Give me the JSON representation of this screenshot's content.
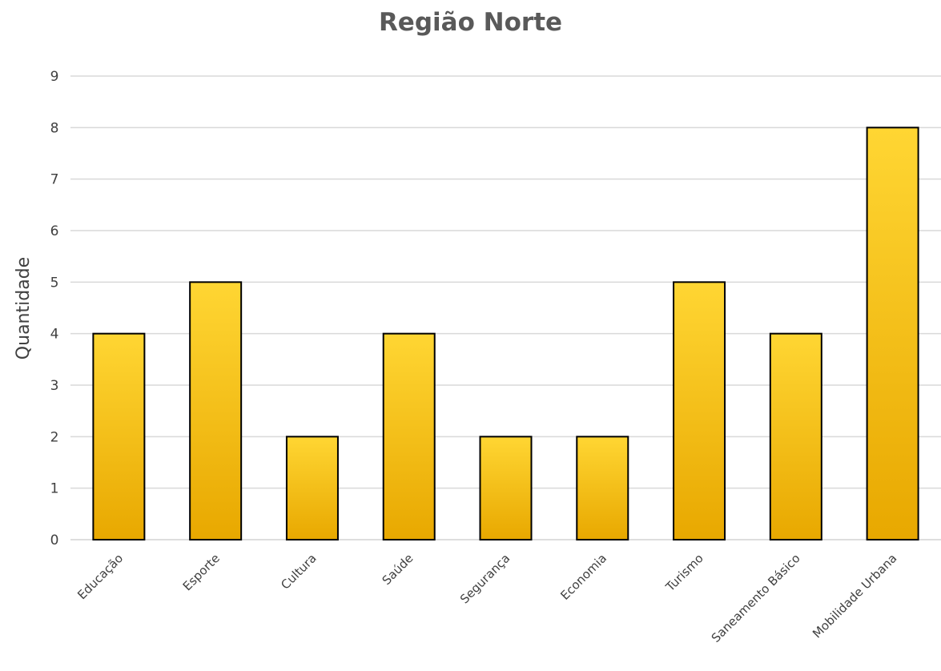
{
  "chart_data": {
    "type": "bar",
    "title": "Região Norte",
    "ylabel": "Quantidade",
    "xlabel": "",
    "categories": [
      "Educação",
      "Esporte",
      "Cultura",
      "Saúde",
      "Segurança",
      "Economia",
      "Turismo",
      "Saneamento Básico",
      "Mobilidade Urbana"
    ],
    "values": [
      4,
      5,
      2,
      4,
      2,
      2,
      5,
      4,
      8
    ],
    "ylim": [
      0,
      9
    ],
    "yticks": [
      0,
      1,
      2,
      3,
      4,
      5,
      6,
      7,
      8,
      9
    ],
    "grid": true,
    "legend": "none",
    "colors": {
      "bar_top": "#FFD633",
      "bar_bottom": "#E8A800",
      "bar_edge": "#000000",
      "grid": "#D9D9D9"
    }
  }
}
